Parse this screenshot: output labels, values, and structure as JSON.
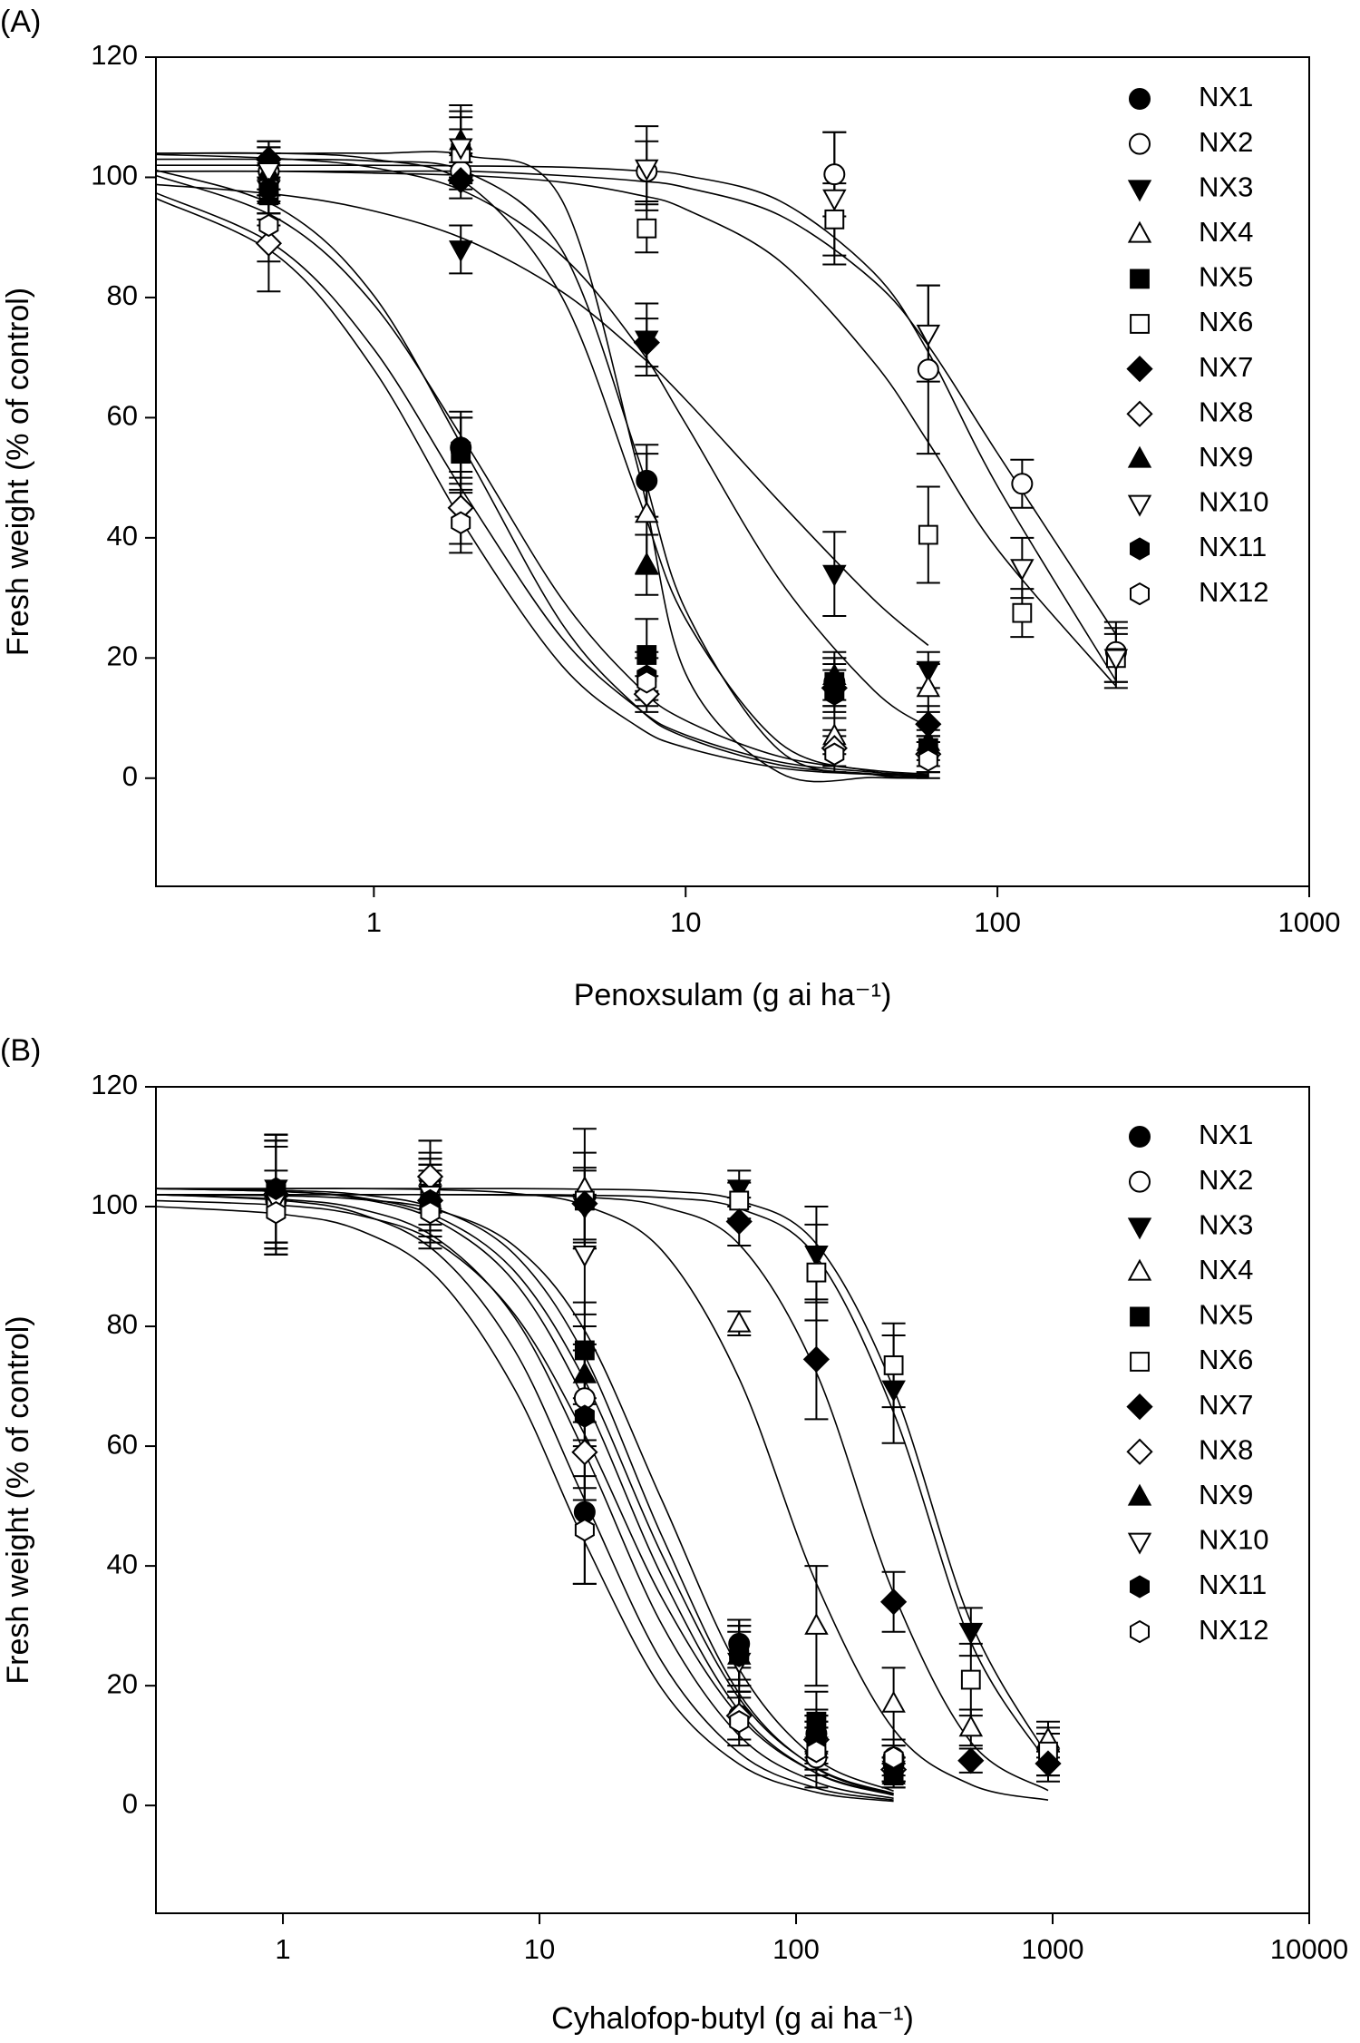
{
  "chart_data": [
    {
      "type": "scatter",
      "label": "(A)",
      "x_label": "Penoxsulam (g ai ha⁻¹)",
      "y_label": "Fresh weight (% of control)",
      "log_x": true,
      "color": "#000000",
      "xlim": [
        0.2,
        1000
      ],
      "xticks": [
        1,
        10,
        100,
        1000
      ],
      "ylim": [
        -18,
        120
      ],
      "yticks": [
        0,
        20,
        40,
        60,
        80,
        100,
        120
      ],
      "x": [
        0.46,
        1.9,
        7.5,
        30,
        60,
        120,
        240
      ],
      "fit_x": [
        0.2,
        0.5,
        1,
        2,
        4,
        7,
        10,
        20,
        40,
        60,
        100,
        240
      ],
      "series": [
        {
          "name": "NX1",
          "marker": "circle",
          "filled": true,
          "values": [
            101,
            55,
            49.5,
            16,
            4,
            null,
            null
          ],
          "errors": [
            4,
            5,
            6,
            4,
            3,
            null,
            null
          ],
          "fit_y": [
            103,
            103,
            102.7,
            100.8,
            88,
            53.7,
            28,
            4.6,
            0.6,
            0.2,
            null,
            null
          ]
        },
        {
          "name": "NX2",
          "marker": "circle",
          "filled": false,
          "values": [
            101,
            101,
            101,
            100.5,
            68,
            49,
            21
          ],
          "errors": [
            3,
            3,
            5,
            7,
            14,
            4,
            5
          ],
          "fit_y": [
            101,
            101,
            101,
            101,
            100.3,
            99.4,
            98.3,
            93.7,
            82.8,
            72,
            54.1,
            23.9
          ]
        },
        {
          "name": "NX3",
          "marker": "triangle-down",
          "filled": true,
          "values": [
            98,
            88,
            73,
            34,
            18,
            null,
            null
          ],
          "errors": [
            4,
            4,
            6,
            7,
            3,
            null,
            null
          ],
          "fit_y": [
            98.8,
            97.1,
            94.4,
            89.5,
            81,
            70.8,
            63,
            46,
            29.8,
            22.1,
            null,
            null
          ]
        },
        {
          "name": "NX4",
          "marker": "triangle-up",
          "filled": false,
          "values": [
            97,
            105,
            44,
            7,
            15,
            null,
            null
          ],
          "errors": [
            5,
            6,
            10,
            3,
            4,
            null,
            null
          ],
          "fit_y": [
            104,
            104,
            104,
            103.6,
            96.3,
            52,
            17.4,
            0.9,
            0.1,
            0,
            null,
            null
          ]
        },
        {
          "name": "NX5",
          "marker": "square",
          "filled": true,
          "values": [
            97,
            54,
            20.5,
            16,
            5,
            null,
            null
          ],
          "errors": [
            4,
            6,
            6,
            4,
            3,
            null,
            null
          ],
          "fit_y": [
            101.2,
            94.8,
            80.3,
            53.6,
            25.8,
            11.8,
            6.8,
            2.2,
            0.7,
            0.3,
            null,
            null
          ]
        },
        {
          "name": "NX6",
          "marker": "square",
          "filled": false,
          "values": [
            98,
            104,
            91.5,
            93,
            40.5,
            27.5,
            20
          ],
          "errors": [
            4,
            4,
            4,
            6,
            8,
            4,
            4
          ],
          "fit_y": [
            101,
            101,
            100.7,
            100.3,
            99.2,
            97.1,
            94.7,
            86.1,
            69.3,
            55.9,
            38.1,
            15.3
          ]
        },
        {
          "name": "NX7",
          "marker": "diamond",
          "filled": true,
          "values": [
            103,
            99.5,
            72.5,
            15,
            9,
            null,
            null
          ],
          "errors": [
            3,
            3,
            4,
            4,
            3,
            null,
            null
          ],
          "fit_y": [
            103.8,
            103.1,
            101.6,
            97.4,
            87,
            72,
            59,
            33,
            14.7,
            8.5,
            null,
            null
          ]
        },
        {
          "name": "NX8",
          "marker": "diamond",
          "filled": false,
          "values": [
            89,
            45,
            14,
            5,
            4,
            null,
            null
          ],
          "errors": [
            8,
            6,
            3,
            3,
            3,
            null,
            null
          ],
          "fit_y": [
            97.4,
            88.1,
            71.4,
            46.5,
            23.4,
            11.7,
            7.2,
            2.7,
            1.0,
            0.5,
            null,
            null
          ]
        },
        {
          "name": "NX9",
          "marker": "triangle-up",
          "filled": true,
          "values": [
            101,
            106,
            35.5,
            17,
            6,
            null,
            null
          ],
          "errors": [
            4,
            6,
            5,
            4,
            3,
            null,
            null
          ],
          "fit_y": [
            104,
            104,
            103,
            98.8,
            80.2,
            47.3,
            26.5,
            5.9,
            1.1,
            0.4,
            null,
            null
          ]
        },
        {
          "name": "NX10",
          "marker": "triangle-down",
          "filled": false,
          "values": [
            101,
            105,
            101.5,
            96.5,
            74,
            35,
            20
          ],
          "errors": [
            5,
            5,
            7,
            11,
            8,
            5,
            5
          ],
          "fit_y": [
            102,
            102,
            102,
            101.9,
            101.7,
            101.1,
            100.3,
            96.1,
            84.2,
            70.9,
            48.6,
            16.2
          ]
        },
        {
          "name": "NX11",
          "marker": "hexagon",
          "filled": true,
          "values": [
            98,
            55,
            17,
            14,
            4,
            null,
            null
          ],
          "errors": [
            4,
            6,
            4,
            4,
            3,
            null,
            null
          ],
          "fit_y": [
            100.3,
            92.9,
            78.8,
            55.2,
            29.9,
            15.4,
            9.6,
            3.6,
            1.3,
            0.7,
            null,
            null
          ]
        },
        {
          "name": "NX12",
          "marker": "hexagon",
          "filled": false,
          "values": [
            92,
            42.5,
            16,
            4,
            3,
            null,
            null
          ],
          "errors": [
            6,
            5,
            4,
            3,
            3,
            null,
            null
          ],
          "fit_y": [
            96.5,
            86.6,
            68,
            41.2,
            18.8,
            8.6,
            5.1,
            1.7,
            0.6,
            0.3,
            null,
            null
          ]
        }
      ]
    },
    {
      "type": "scatter",
      "label": "(B)",
      "x_label": "Cyhalofop-butyl (g ai ha⁻¹)",
      "y_label": "Fresh weight (% of control)",
      "log_x": true,
      "color": "#000000",
      "xlim": [
        0.32,
        10000
      ],
      "xticks": [
        1,
        10,
        100,
        1000,
        10000
      ],
      "ylim": [
        -18,
        120
      ],
      "yticks": [
        0,
        20,
        40,
        60,
        80,
        100,
        120
      ],
      "x": [
        0.94,
        3.75,
        15,
        60,
        120,
        240,
        480,
        960
      ],
      "fit_x": [
        0.32,
        1,
        2,
        4,
        8,
        15,
        30,
        60,
        120,
        240,
        480,
        960
      ],
      "series": [
        {
          "name": "NX1",
          "marker": "circle",
          "filled": true,
          "values": [
            102,
            101,
            49,
            27,
            12,
            7,
            null,
            null
          ],
          "errors": [
            9,
            6,
            12,
            4,
            4,
            3,
            null,
            null
          ],
          "fit_y": [
            102,
            101,
            98.8,
            92.2,
            76,
            51,
            24,
            8.8,
            2.9,
            0.9,
            null,
            null
          ]
        },
        {
          "name": "NX2",
          "marker": "circle",
          "filled": false,
          "values": [
            101,
            100,
            68,
            15,
            8,
            8,
            null,
            null
          ],
          "errors": [
            9,
            6,
            8,
            4,
            5,
            3,
            null,
            null
          ],
          "fit_y": [
            101,
            100.2,
            98.5,
            93.9,
            82,
            61.9,
            34.7,
            14.9,
            5.4,
            1.9,
            null,
            null
          ]
        },
        {
          "name": "NX3",
          "marker": "triangle-down",
          "filled": true,
          "values": [
            103,
            103,
            100,
            103,
            92,
            69.5,
            29,
            8
          ],
          "errors": [
            9,
            6,
            6,
            3,
            8,
            9,
            4,
            4
          ],
          "fit_y": [
            103,
            103,
            103,
            103,
            103,
            102.9,
            102.6,
            101,
            93.8,
            69.6,
            30.6,
            8.1
          ]
        },
        {
          "name": "NX4",
          "marker": "triangle-up",
          "filled": false,
          "values": [
            103,
            105,
            103,
            80.5,
            30,
            17,
            13,
            11
          ],
          "errors": [
            9,
            6,
            10,
            2,
            10,
            6,
            3,
            3
          ],
          "fit_y": [
            103,
            103,
            103,
            102.8,
            102.2,
            100.2,
            92.7,
            71.3,
            37.1,
            12.7,
            3.5,
            0.9
          ]
        },
        {
          "name": "NX5",
          "marker": "square",
          "filled": true,
          "values": [
            102,
            101,
            76,
            26,
            14,
            5,
            null,
            null
          ],
          "errors": [
            9,
            6,
            8,
            5,
            5,
            2,
            null,
            null
          ],
          "fit_y": [
            103,
            102.7,
            102,
            99.6,
            92,
            75.1,
            45,
            18.7,
            6.2,
            1.9,
            null,
            null
          ]
        },
        {
          "name": "NX6",
          "marker": "square",
          "filled": false,
          "values": [
            101,
            102,
            101,
            101,
            89,
            73.5,
            21,
            9
          ],
          "errors": [
            9,
            6,
            8,
            3,
            8,
            7,
            6,
            4
          ],
          "fit_y": [
            102,
            102,
            102,
            102,
            102,
            101.9,
            101.5,
            99.7,
            91.6,
            65.6,
            27.3,
            7.0
          ]
        },
        {
          "name": "NX7",
          "marker": "diamond",
          "filled": true,
          "values": [
            102,
            101,
            100.5,
            97.5,
            74.5,
            34,
            7.5,
            7
          ],
          "errors": [
            9,
            6,
            6,
            4,
            10,
            5,
            2,
            2
          ],
          "fit_y": [
            102,
            102,
            102,
            102,
            101.9,
            101.6,
            100,
            93.7,
            72.3,
            35.4,
            10.6,
            2.5
          ]
        },
        {
          "name": "NX8",
          "marker": "diamond",
          "filled": false,
          "values": [
            102,
            105,
            59,
            15,
            11,
            6,
            null,
            null
          ],
          "errors": [
            9,
            6,
            8,
            4,
            4,
            2,
            null,
            null
          ],
          "fit_y": [
            102,
            101.2,
            99.6,
            94.6,
            81.5,
            58.9,
            30.2,
            11.7,
            3.9,
            1.2,
            null,
            null
          ]
        },
        {
          "name": "NX9",
          "marker": "triangle-up",
          "filled": true,
          "values": [
            103,
            101,
            72,
            25,
            10,
            5,
            null,
            null
          ],
          "errors": [
            9,
            6,
            8,
            5,
            4,
            2,
            null,
            null
          ],
          "fit_y": [
            103,
            102.5,
            101.5,
            98.3,
            89.2,
            71,
            41.9,
            17.9,
            6.3,
            2.0,
            null,
            null
          ]
        },
        {
          "name": "NX10",
          "marker": "triangle-down",
          "filled": false,
          "values": [
            101,
            102,
            92,
            24,
            10,
            6,
            null,
            null
          ],
          "errors": [
            9,
            6,
            10,
            5,
            4,
            2,
            null,
            null
          ],
          "fit_y": [
            102,
            101.8,
            101.2,
            99.4,
            93.4,
            79.3,
            51,
            22.8,
            7.8,
            2.4,
            null,
            null
          ]
        },
        {
          "name": "NX11",
          "marker": "hexagon",
          "filled": true,
          "values": [
            103,
            101,
            65,
            25,
            11,
            6,
            null,
            null
          ],
          "errors": [
            9,
            6,
            12,
            5,
            4,
            2,
            null,
            null
          ],
          "fit_y": [
            103,
            102.5,
            101.3,
            97.6,
            87.4,
            67.7,
            38.3,
            15.8,
            5.4,
            1.7,
            null,
            null
          ]
        },
        {
          "name": "NX12",
          "marker": "hexagon",
          "filled": false,
          "values": [
            99,
            99,
            46,
            14,
            9,
            8,
            null,
            null
          ],
          "errors": [
            7,
            6,
            9,
            4,
            4,
            2,
            null,
            null
          ],
          "fit_y": [
            100,
            98.7,
            96,
            88.1,
            69.5,
            44,
            19.5,
            6.9,
            2.2,
            0.7,
            null,
            null
          ]
        }
      ]
    }
  ]
}
